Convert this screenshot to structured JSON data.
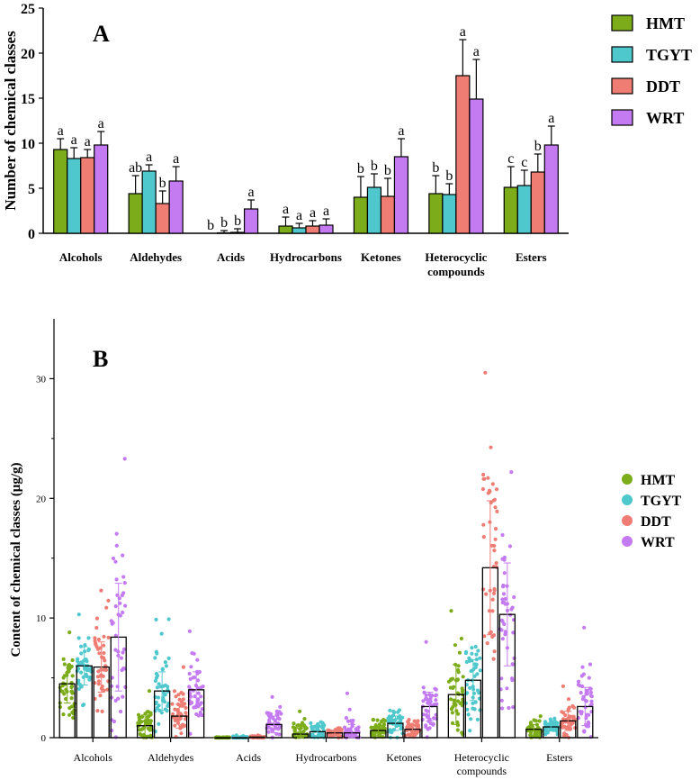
{
  "colors": {
    "HMT": "#7cac1a",
    "TGYT": "#4ec8cd",
    "DDT": "#ef7d74",
    "WRT": "#c47bf2"
  },
  "chart_data": [
    {
      "panel": "A",
      "type": "bar",
      "ylabel": "Number of chemical classes",
      "ylim": [
        0,
        25
      ],
      "yticks": [
        "0",
        "5",
        "10",
        "15",
        "20",
        "25"
      ],
      "categories": [
        "Alcohols",
        "Aldehydes",
        "Acids",
        "Hydrocarbons",
        "Ketones",
        "Heterocyclic compounds",
        "Esters"
      ],
      "series": [
        {
          "name": "HMT",
          "values": [
            9.3,
            4.4,
            0,
            0.8,
            4.0,
            4.4,
            5.1
          ],
          "errors": [
            1.2,
            2.0,
            0,
            1.0,
            2.3,
            2.0,
            2.3
          ],
          "letters": [
            "a",
            "ab",
            "b",
            "a",
            "b",
            "b",
            "c"
          ]
        },
        {
          "name": "TGYT",
          "values": [
            8.3,
            6.9,
            0.05,
            0.6,
            5.1,
            4.3,
            5.3
          ],
          "errors": [
            1.2,
            0.7,
            0.25,
            0.5,
            1.5,
            1.2,
            1.7
          ],
          "letters": [
            "a",
            "a",
            "b",
            "a",
            "b",
            "b",
            "c"
          ]
        },
        {
          "name": "DDT",
          "values": [
            8.4,
            3.3,
            0.1,
            0.8,
            4.1,
            17.5,
            6.8
          ],
          "errors": [
            0.9,
            1.4,
            0.4,
            0.6,
            2.0,
            4.0,
            2.0
          ],
          "letters": [
            "a",
            "b",
            "b",
            "a",
            "b",
            "a",
            "b"
          ]
        },
        {
          "name": "WRT",
          "values": [
            9.8,
            5.8,
            2.7,
            0.9,
            8.5,
            14.9,
            9.8
          ],
          "errors": [
            1.5,
            1.6,
            1.0,
            0.7,
            2.0,
            4.4,
            2.1
          ],
          "letters": [
            "a",
            "a",
            "a",
            "a",
            "a",
            "a",
            "a"
          ]
        }
      ],
      "legend": [
        "HMT",
        "TGYT",
        "DDT",
        "WRT"
      ]
    },
    {
      "panel": "B",
      "type": "bar",
      "ylabel": "Content of chemical classes (μg/g)",
      "ylim": [
        0,
        35
      ],
      "yticks": [
        "0",
        "10",
        "20",
        "30"
      ],
      "categories": [
        "Alcohols",
        "Aldehydes",
        "Acids",
        "Hydrocarbons",
        "Ketones",
        "Heterocyclic compounds",
        "Esters"
      ],
      "series": [
        {
          "name": "HMT",
          "values": [
            4.5,
            1.0,
            0.0,
            0.3,
            0.6,
            3.6,
            0.7
          ],
          "errors": [
            1.6,
            0.9,
            0.02,
            0.5,
            0.4,
            2.5,
            0.4
          ],
          "max": [
            8.8,
            3.9,
            0.05,
            2.2,
            1.5,
            10.6,
            1.8
          ]
        },
        {
          "name": "TGYT",
          "values": [
            6.0,
            3.9,
            0.0,
            0.5,
            1.2,
            4.8,
            0.9
          ],
          "errors": [
            1.6,
            1.6,
            0.05,
            0.4,
            0.6,
            1.7,
            0.3
          ],
          "max": [
            10.3,
            9.9,
            0.2,
            1.3,
            2.3,
            7.6,
            1.6
          ]
        },
        {
          "name": "DDT",
          "values": [
            5.9,
            1.8,
            0.05,
            0.4,
            0.7,
            14.2,
            1.4
          ],
          "errors": [
            2.1,
            1.0,
            0.05,
            0.2,
            0.4,
            5.6,
            0.8
          ],
          "max": [
            12.3,
            5.9,
            0.2,
            0.8,
            1.5,
            30.5,
            4.3
          ]
        },
        {
          "name": "WRT",
          "values": [
            8.4,
            4.0,
            1.1,
            0.4,
            2.6,
            10.3,
            2.6
          ],
          "errors": [
            4.5,
            1.5,
            0.7,
            0.7,
            1.2,
            4.3,
            1.6
          ],
          "max": [
            23.3,
            8.9,
            3.4,
            3.7,
            8.0,
            22.2,
            9.2
          ]
        }
      ],
      "legend": [
        "HMT",
        "TGYT",
        "DDT",
        "WRT"
      ]
    }
  ],
  "panel_labels": {
    "A": "A",
    "B": "B"
  },
  "x_labels": [
    "Alcohols",
    "Aldehydes",
    "Acids",
    "Hydrocarbons",
    "Ketones",
    [
      "Heterocyclic",
      "compounds"
    ],
    "Esters"
  ]
}
